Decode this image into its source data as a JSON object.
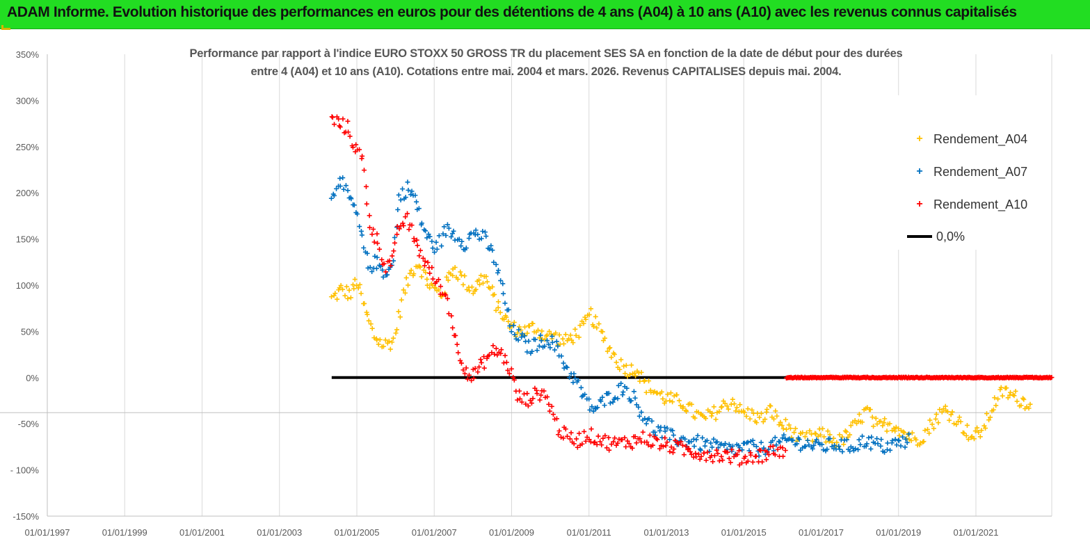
{
  "banner": {
    "title": "ADAM Informe. Evolution historique des performances en euros pour des détentions de 4 ans (A04) à 10 ans (A10) avec les revenus connus capitalisés"
  },
  "colors": {
    "banner_bg": "#22dd22",
    "a04": "#ffc000",
    "a07": "#0070c0",
    "a10": "#ff0000",
    "zero": "#000000",
    "grid": "#d9d9d9"
  },
  "chart_data": {
    "type": "scatter",
    "title_lines": [
      "Performance par rapport à l'indice EURO STOXX 50 GROSS TR  du placement SES SA en fonction de la date de début pour des durées",
      "entre 4 (A04) et 10 ans (A10). Cotations entre mai. 2004 et mars. 2026. Revenus CAPITALISES depuis mai. 2004."
    ],
    "xlabel": "",
    "ylabel": "",
    "x_range": [
      1997.0,
      2022.96
    ],
    "ylim": [
      -150,
      350
    ],
    "y_ticks": [
      350,
      300,
      250,
      200,
      150,
      100,
      50,
      0,
      -50,
      -100,
      -150
    ],
    "y_tick_labels": [
      "350%",
      "300%",
      "250%",
      "200%",
      "150%",
      "100%",
      "50%",
      "0%",
      "-50%",
      "- 100%",
      "-150%"
    ],
    "x_ticks": [
      1997,
      1999,
      2001,
      2003,
      2005,
      2007,
      2009,
      2011,
      2013,
      2015,
      2017,
      2019,
      2021
    ],
    "x_tick_labels": [
      "01/01/1997",
      "01/01/1999",
      "01/01/2001",
      "01/01/2003",
      "01/01/2005",
      "01/01/2007",
      "01/01/2009",
      "01/01/2011",
      "01/01/2013",
      "01/01/2015",
      "01/01/2017",
      "01/01/2019",
      "01/01/2021"
    ],
    "grid": "vertical",
    "legend_position": "top-right",
    "series": [
      {
        "name": "Rendement_A04",
        "marker": "+",
        "color": "#ffc000",
        "points": [
          [
            2004.35,
            85
          ],
          [
            2004.6,
            95
          ],
          [
            2004.85,
            90
          ],
          [
            2005.0,
            105
          ],
          [
            2005.2,
            75
          ],
          [
            2005.45,
            45
          ],
          [
            2005.7,
            35
          ],
          [
            2005.95,
            40
          ],
          [
            2006.2,
            90
          ],
          [
            2006.4,
            115
          ],
          [
            2006.6,
            125
          ],
          [
            2006.8,
            105
          ],
          [
            2007.0,
            95
          ],
          [
            2007.2,
            90
          ],
          [
            2007.5,
            120
          ],
          [
            2007.75,
            105
          ],
          [
            2008.0,
            95
          ],
          [
            2008.3,
            110
          ],
          [
            2008.6,
            80
          ],
          [
            2008.9,
            58
          ],
          [
            2009.1,
            52
          ],
          [
            2009.35,
            50
          ],
          [
            2009.6,
            55
          ],
          [
            2009.85,
            45
          ],
          [
            2010.1,
            45
          ],
          [
            2010.35,
            38
          ],
          [
            2010.6,
            45
          ],
          [
            2010.85,
            55
          ],
          [
            2011.05,
            68
          ],
          [
            2011.3,
            48
          ],
          [
            2011.55,
            30
          ],
          [
            2011.8,
            15
          ],
          [
            2012.05,
            8
          ],
          [
            2012.25,
            10
          ],
          [
            2012.45,
            -8
          ],
          [
            2012.7,
            -15
          ],
          [
            2012.95,
            -22
          ],
          [
            2013.2,
            -25
          ],
          [
            2013.45,
            -28
          ],
          [
            2013.7,
            -38
          ],
          [
            2013.95,
            -45
          ],
          [
            2014.2,
            -40
          ],
          [
            2014.45,
            -32
          ],
          [
            2014.7,
            -25
          ],
          [
            2014.95,
            -38
          ],
          [
            2015.2,
            -40
          ],
          [
            2015.45,
            -45
          ],
          [
            2015.7,
            -35
          ],
          [
            2015.95,
            -50
          ],
          [
            2016.2,
            -55
          ],
          [
            2016.45,
            -68
          ],
          [
            2016.7,
            -65
          ],
          [
            2016.95,
            -62
          ],
          [
            2017.2,
            -65
          ],
          [
            2017.45,
            -70
          ],
          [
            2017.7,
            -62
          ],
          [
            2017.95,
            -48
          ],
          [
            2018.2,
            -35
          ],
          [
            2018.45,
            -55
          ],
          [
            2018.7,
            -50
          ],
          [
            2018.95,
            -52
          ],
          [
            2019.2,
            -62
          ],
          [
            2019.45,
            -68
          ],
          [
            2019.7,
            -60
          ],
          [
            2019.95,
            -45
          ],
          [
            2020.2,
            -35
          ],
          [
            2020.45,
            -42
          ],
          [
            2020.7,
            -55
          ],
          [
            2020.95,
            -65
          ],
          [
            2021.2,
            -55
          ],
          [
            2021.45,
            -30
          ],
          [
            2021.7,
            -15
          ],
          [
            2021.95,
            -20
          ],
          [
            2022.2,
            -25
          ],
          [
            2022.45,
            -28
          ]
        ]
      },
      {
        "name": "Rendement_A07",
        "marker": "+",
        "color": "#0070c0",
        "points": [
          [
            2004.35,
            190
          ],
          [
            2004.55,
            220
          ],
          [
            2004.75,
            195
          ],
          [
            2004.95,
            185
          ],
          [
            2005.1,
            155
          ],
          [
            2005.3,
            120
          ],
          [
            2005.5,
            125
          ],
          [
            2005.7,
            115
          ],
          [
            2005.9,
            118
          ],
          [
            2006.1,
            195
          ],
          [
            2006.3,
            205
          ],
          [
            2006.5,
            195
          ],
          [
            2006.65,
            170
          ],
          [
            2006.85,
            150
          ],
          [
            2007.05,
            140
          ],
          [
            2007.3,
            160
          ],
          [
            2007.55,
            155
          ],
          [
            2007.8,
            145
          ],
          [
            2008.05,
            158
          ],
          [
            2008.3,
            150
          ],
          [
            2008.55,
            130
          ],
          [
            2008.8,
            90
          ],
          [
            2009.0,
            50
          ],
          [
            2009.2,
            45
          ],
          [
            2009.45,
            32
          ],
          [
            2009.7,
            38
          ],
          [
            2009.95,
            42
          ],
          [
            2010.2,
            30
          ],
          [
            2010.45,
            8
          ],
          [
            2010.7,
            -5
          ],
          [
            2010.9,
            -25
          ],
          [
            2011.15,
            -35
          ],
          [
            2011.4,
            -25
          ],
          [
            2011.65,
            -18
          ],
          [
            2011.9,
            -10
          ],
          [
            2012.15,
            -22
          ],
          [
            2012.4,
            -40
          ],
          [
            2012.65,
            -55
          ],
          [
            2012.9,
            -60
          ],
          [
            2013.15,
            -65
          ],
          [
            2013.4,
            -68
          ],
          [
            2013.65,
            -68
          ],
          [
            2013.9,
            -72
          ],
          [
            2014.15,
            -74
          ],
          [
            2014.4,
            -76
          ],
          [
            2014.65,
            -78
          ],
          [
            2014.9,
            -76
          ],
          [
            2015.15,
            -75
          ],
          [
            2015.4,
            -78
          ],
          [
            2015.65,
            -74
          ],
          [
            2015.9,
            -72
          ],
          [
            2016.15,
            -68
          ],
          [
            2016.4,
            -70
          ],
          [
            2016.65,
            -72
          ],
          [
            2016.9,
            -75
          ],
          [
            2017.15,
            -74
          ],
          [
            2017.4,
            -72
          ],
          [
            2017.65,
            -75
          ],
          [
            2017.9,
            -73
          ],
          [
            2018.15,
            -68
          ],
          [
            2018.4,
            -72
          ],
          [
            2018.65,
            -75
          ],
          [
            2018.9,
            -72
          ],
          [
            2019.15,
            -70
          ],
          [
            2019.3,
            -65
          ]
        ]
      },
      {
        "name": "Rendement_A10",
        "marker": "+",
        "color": "#ff0000",
        "points": [
          [
            2004.35,
            280
          ],
          [
            2004.55,
            275
          ],
          [
            2004.75,
            270
          ],
          [
            2004.95,
            250
          ],
          [
            2005.15,
            235
          ],
          [
            2005.35,
            165
          ],
          [
            2005.55,
            145
          ],
          [
            2005.75,
            120
          ],
          [
            2005.95,
            130
          ],
          [
            2006.1,
            165
          ],
          [
            2006.3,
            170
          ],
          [
            2006.5,
            150
          ],
          [
            2006.7,
            130
          ],
          [
            2006.9,
            115
          ],
          [
            2007.1,
            100
          ],
          [
            2007.35,
            85
          ],
          [
            2007.55,
            40
          ],
          [
            2007.75,
            15
          ],
          [
            2007.95,
            0
          ],
          [
            2008.15,
            10
          ],
          [
            2008.35,
            20
          ],
          [
            2008.55,
            30
          ],
          [
            2008.75,
            25
          ],
          [
            2008.95,
            10
          ],
          [
            2009.15,
            -20
          ],
          [
            2009.35,
            -25
          ],
          [
            2009.55,
            -20
          ],
          [
            2009.8,
            -15
          ],
          [
            2010.0,
            -30
          ],
          [
            2010.2,
            -55
          ],
          [
            2010.45,
            -65
          ],
          [
            2010.7,
            -68
          ],
          [
            2010.95,
            -62
          ],
          [
            2011.2,
            -65
          ],
          [
            2011.45,
            -70
          ],
          [
            2011.7,
            -72
          ],
          [
            2011.95,
            -70
          ],
          [
            2012.2,
            -68
          ],
          [
            2012.45,
            -65
          ],
          [
            2012.7,
            -70
          ],
          [
            2012.95,
            -73
          ],
          [
            2013.2,
            -75
          ],
          [
            2013.45,
            -78
          ],
          [
            2013.7,
            -80
          ],
          [
            2013.95,
            -82
          ],
          [
            2014.2,
            -83
          ],
          [
            2014.45,
            -84
          ],
          [
            2014.7,
            -85
          ],
          [
            2014.95,
            -88
          ],
          [
            2015.2,
            -85
          ],
          [
            2015.45,
            -84
          ],
          [
            2015.7,
            -80
          ],
          [
            2015.95,
            -79
          ],
          [
            2016.1,
            -78
          ]
        ]
      },
      {
        "name": "0,0%",
        "marker": "line",
        "color": "#000000",
        "points": [
          [
            2004.35,
            0
          ],
          [
            2016.1,
            0
          ]
        ]
      }
    ],
    "extra_series": {
      "name": "Rendement_A10",
      "note": "marks drawn at 0% from 2016.1 to 2022.96",
      "points": [
        [
          2016.1,
          0
        ],
        [
          2022.96,
          0
        ]
      ]
    }
  }
}
